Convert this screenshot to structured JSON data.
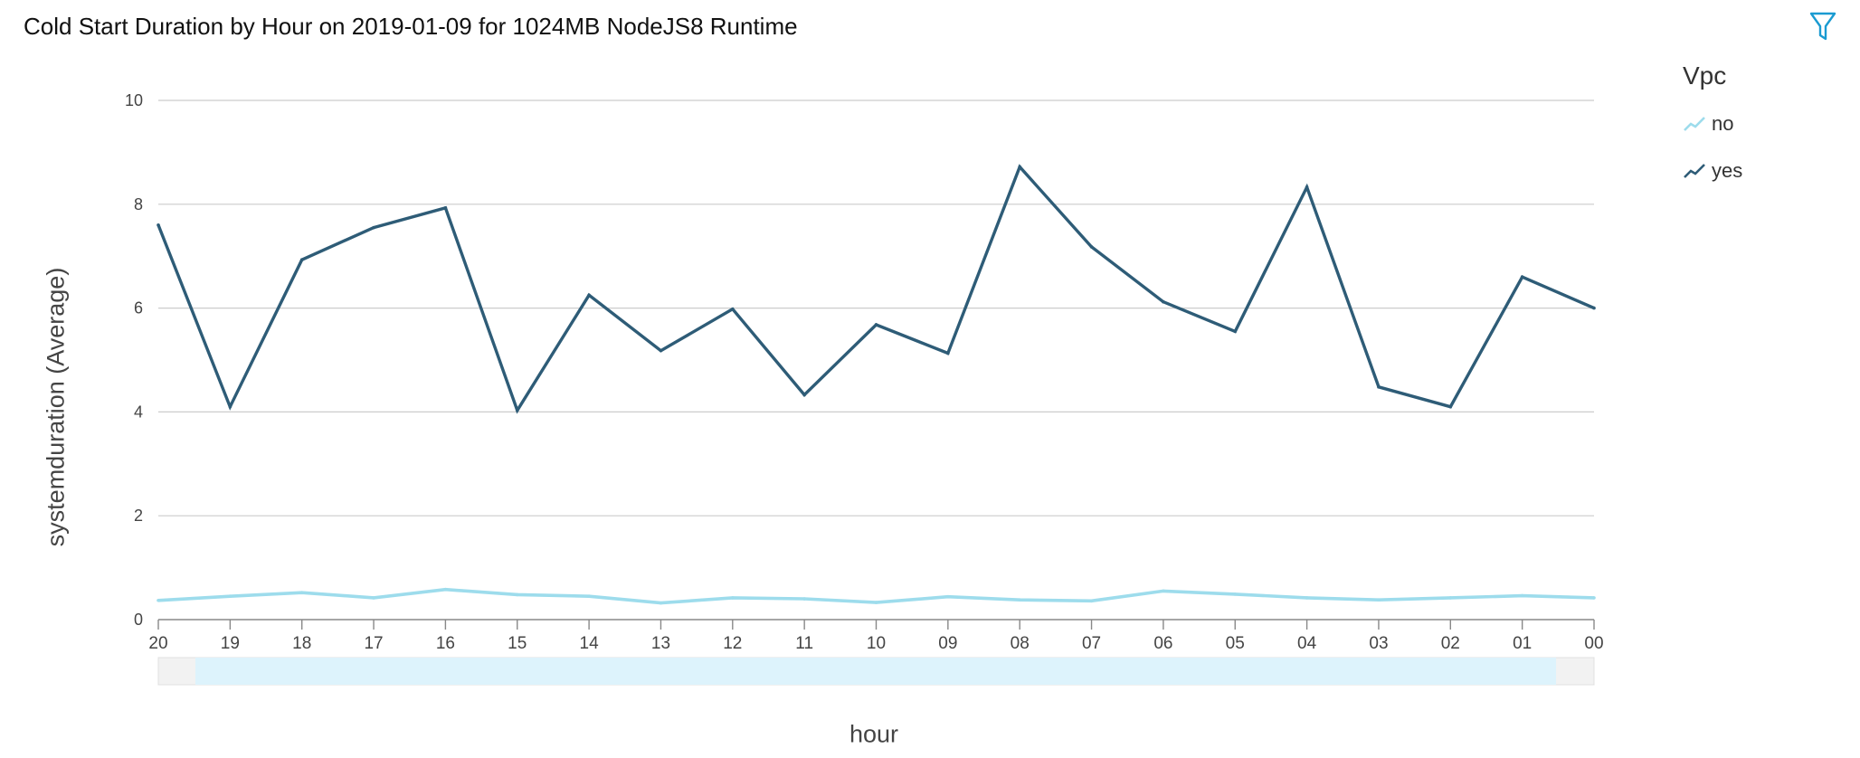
{
  "header": {
    "title": "Cold Start Duration by Hour on 2019-01-09 for 1024MB NodeJS8 Runtime",
    "filter_icon": "filter-icon"
  },
  "legend": {
    "title": "Vpc",
    "items": [
      {
        "label": "no",
        "color": "#9ddcec",
        "icon": "line-chart-icon"
      },
      {
        "label": "yes",
        "color": "#2e5c77",
        "icon": "line-chart-icon"
      }
    ]
  },
  "chart_data": {
    "type": "line",
    "title": "Cold Start Duration by Hour on 2019-01-09 for 1024MB NodeJS8 Runtime",
    "xlabel": "hour",
    "ylabel": "systemduration (Average)",
    "categories": [
      "20",
      "19",
      "18",
      "17",
      "16",
      "15",
      "14",
      "13",
      "12",
      "11",
      "10",
      "09",
      "08",
      "07",
      "06",
      "05",
      "04",
      "03",
      "02",
      "01",
      "00"
    ],
    "ylim": [
      0,
      10
    ],
    "yticks": [
      "0",
      "2",
      "4",
      "6",
      "8",
      "10"
    ],
    "grid": true,
    "legend_placement": "top-right",
    "series": [
      {
        "name": "no",
        "color": "#9ddcec",
        "values": [
          0.37,
          0.45,
          0.52,
          0.42,
          0.58,
          0.48,
          0.45,
          0.32,
          0.42,
          0.4,
          0.33,
          0.44,
          0.38,
          0.36,
          0.55,
          0.49,
          0.42,
          0.38,
          0.42,
          0.46,
          0.42
        ]
      },
      {
        "name": "yes",
        "color": "#2e5c77",
        "values": [
          7.6,
          4.1,
          6.93,
          7.55,
          7.93,
          4.03,
          6.25,
          5.18,
          5.98,
          4.33,
          5.68,
          5.13,
          8.72,
          7.18,
          6.12,
          5.55,
          8.33,
          4.48,
          4.1,
          6.6,
          6.0
        ]
      }
    ]
  }
}
